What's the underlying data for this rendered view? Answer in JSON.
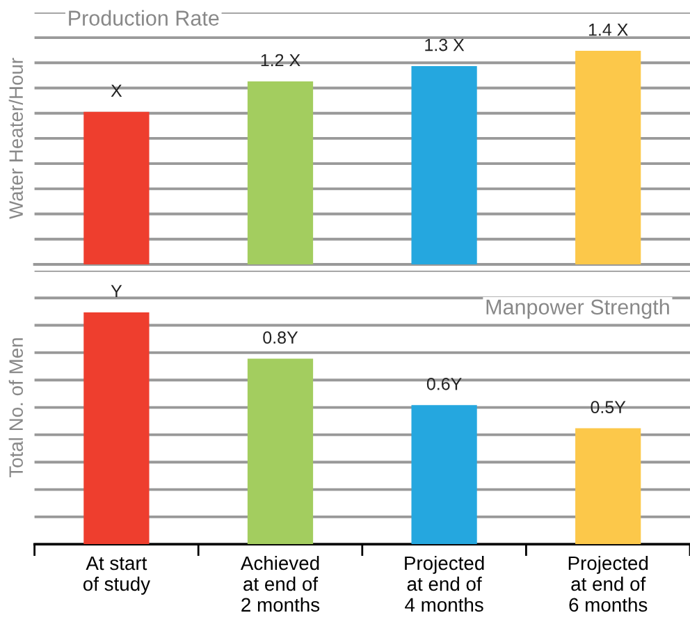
{
  "chart_data": [
    {
      "type": "bar",
      "title": "Production Rate",
      "ylabel": "Water Heater/Hour",
      "categories": [
        null,
        null,
        null,
        null
      ],
      "values": [
        1,
        1.2,
        1.3,
        1.4
      ],
      "value_labels": [
        "X",
        "1.2 X",
        "1.3 X",
        "1.4 X"
      ],
      "colors": [
        "#ee3e2e",
        "#a3cd5f",
        "#25a7df",
        "#fcc84a"
      ],
      "grid": "y",
      "tick_labels": false
    },
    {
      "type": "bar",
      "title": "Manpower Strength",
      "ylabel": "Total No. of Men",
      "categories": [
        "At start\nof study",
        "Achieved\nat end of\n2 months",
        "Projected\nat end of\n4 months",
        "Projected\nat end of\n6 months"
      ],
      "values": [
        1,
        0.8,
        0.6,
        0.5
      ],
      "value_labels": [
        "Y",
        "0.8Y",
        "0.6Y",
        "0.5Y"
      ],
      "colors": [
        "#ee3e2e",
        "#a3cd5f",
        "#25a7df",
        "#fcc84a"
      ],
      "grid": "y",
      "tick_labels": "x"
    }
  ]
}
